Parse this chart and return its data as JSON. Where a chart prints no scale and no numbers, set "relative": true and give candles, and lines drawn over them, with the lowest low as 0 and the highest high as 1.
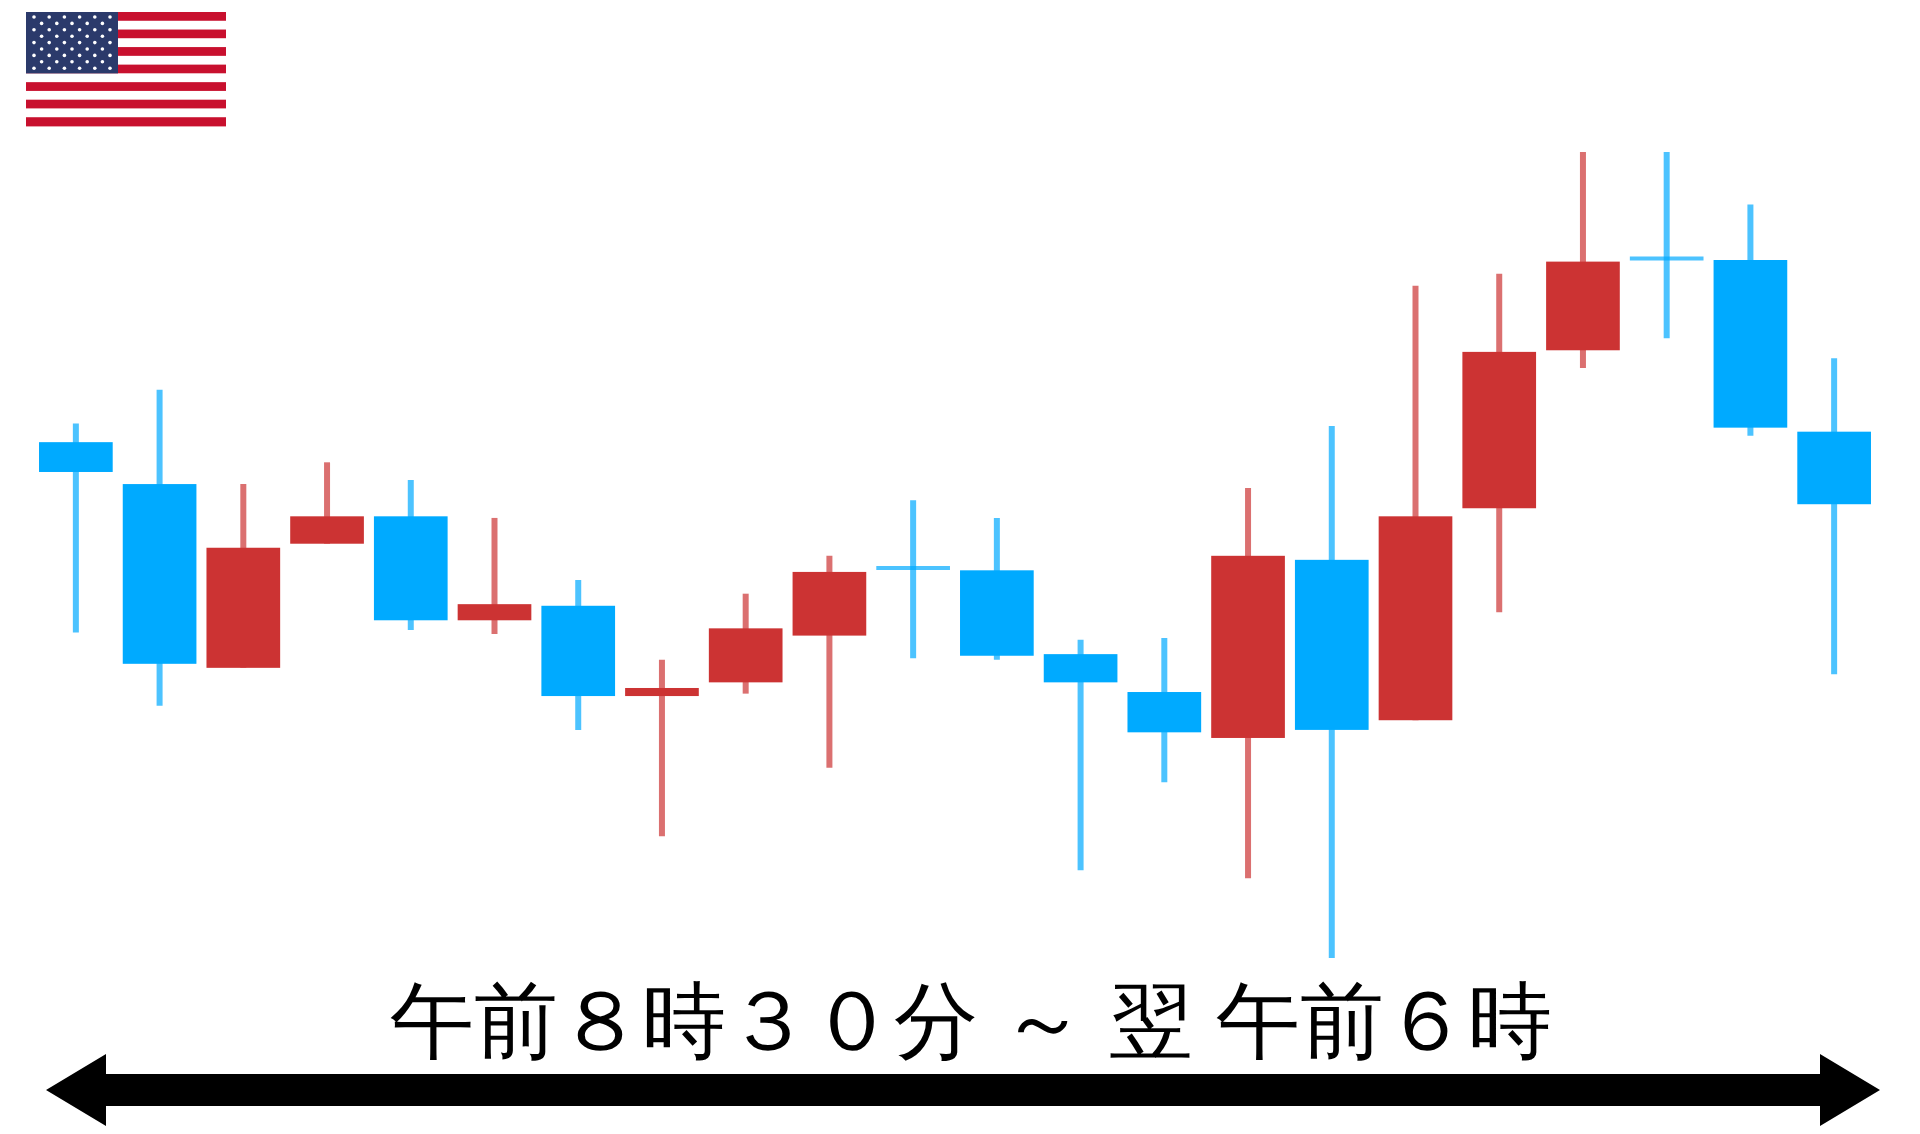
{
  "chart_data": {
    "type": "candlestick",
    "relative": true,
    "categories": [
      null,
      null,
      null,
      null,
      null,
      null,
      null,
      null,
      null,
      null,
      null,
      null,
      null,
      null,
      null,
      null,
      null,
      null,
      null,
      null,
      null,
      null
    ],
    "ohlc": [
      [
        0.64,
        0.663,
        0.404,
        0.603
      ],
      [
        0.588,
        0.705,
        0.313,
        0.365
      ],
      [
        0.36,
        0.588,
        0.36,
        0.509
      ],
      [
        0.514,
        0.615,
        0.514,
        0.548
      ],
      [
        0.548,
        0.593,
        0.407,
        0.419
      ],
      [
        0.419,
        0.546,
        0.402,
        0.439
      ],
      [
        0.437,
        0.469,
        0.283,
        0.325
      ],
      [
        0.325,
        0.37,
        0.151,
        0.335
      ],
      [
        0.342,
        0.452,
        0.328,
        0.409
      ],
      [
        0.4,
        0.499,
        0.236,
        0.479
      ],
      [
        0.484,
        0.568,
        0.372,
        0.484
      ],
      [
        0.481,
        0.546,
        0.37,
        0.375
      ],
      [
        0.377,
        0.395,
        0.109,
        0.342
      ],
      [
        0.33,
        0.397,
        0.218,
        0.28
      ],
      [
        0.273,
        0.583,
        0.099,
        0.499
      ],
      [
        0.494,
        0.66,
        0.0,
        0.283
      ],
      [
        0.295,
        0.834,
        0.295,
        0.548
      ],
      [
        0.558,
        0.849,
        0.429,
        0.752
      ],
      [
        0.754,
        1.0,
        0.732,
        0.864
      ],
      [
        0.868,
        1.0,
        0.769,
        0.868
      ],
      [
        0.866,
        0.935,
        0.648,
        0.658
      ],
      [
        0.653,
        0.744,
        0.352,
        0.563
      ]
    ],
    "colors": [
      "#00aaff",
      "#00aaff",
      "#cc3333",
      "#cc3333",
      "#00aaff",
      "#cc3333",
      "#00aaff",
      "#cc3333",
      "#cc3333",
      "#cc3333",
      "#00aaff",
      "#00aaff",
      "#00aaff",
      "#00aaff",
      "#cc3333",
      "#00aaff",
      "#cc3333",
      "#cc3333",
      "#cc3333",
      "#00aaff",
      "#00aaff",
      "#00aaff"
    ],
    "xlabel": "午前８時３０分 ～ 翌 午前６時"
  }
}
